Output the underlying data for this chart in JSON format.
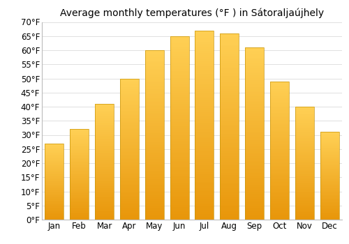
{
  "title": "Average monthly temperatures (°F ) in Sátoraljaújhely",
  "months": [
    "Jan",
    "Feb",
    "Mar",
    "Apr",
    "May",
    "Jun",
    "Jul",
    "Aug",
    "Sep",
    "Oct",
    "Nov",
    "Dec"
  ],
  "values": [
    27,
    32,
    41,
    50,
    60,
    65,
    67,
    66,
    61,
    49,
    40,
    31
  ],
  "bar_color_top": "#FFD966",
  "bar_color_bottom": "#F0A500",
  "bar_edge_color": "#C8960C",
  "ylim": [
    0,
    70
  ],
  "yticks": [
    0,
    5,
    10,
    15,
    20,
    25,
    30,
    35,
    40,
    45,
    50,
    55,
    60,
    65,
    70
  ],
  "ytick_labels": [
    "0°F",
    "5°F",
    "10°F",
    "15°F",
    "20°F",
    "25°F",
    "30°F",
    "35°F",
    "40°F",
    "45°F",
    "50°F",
    "55°F",
    "60°F",
    "65°F",
    "70°F"
  ],
  "background_color": "#ffffff",
  "grid_color": "#e0e0e0",
  "title_fontsize": 10,
  "tick_fontsize": 8.5,
  "bar_width": 0.75
}
